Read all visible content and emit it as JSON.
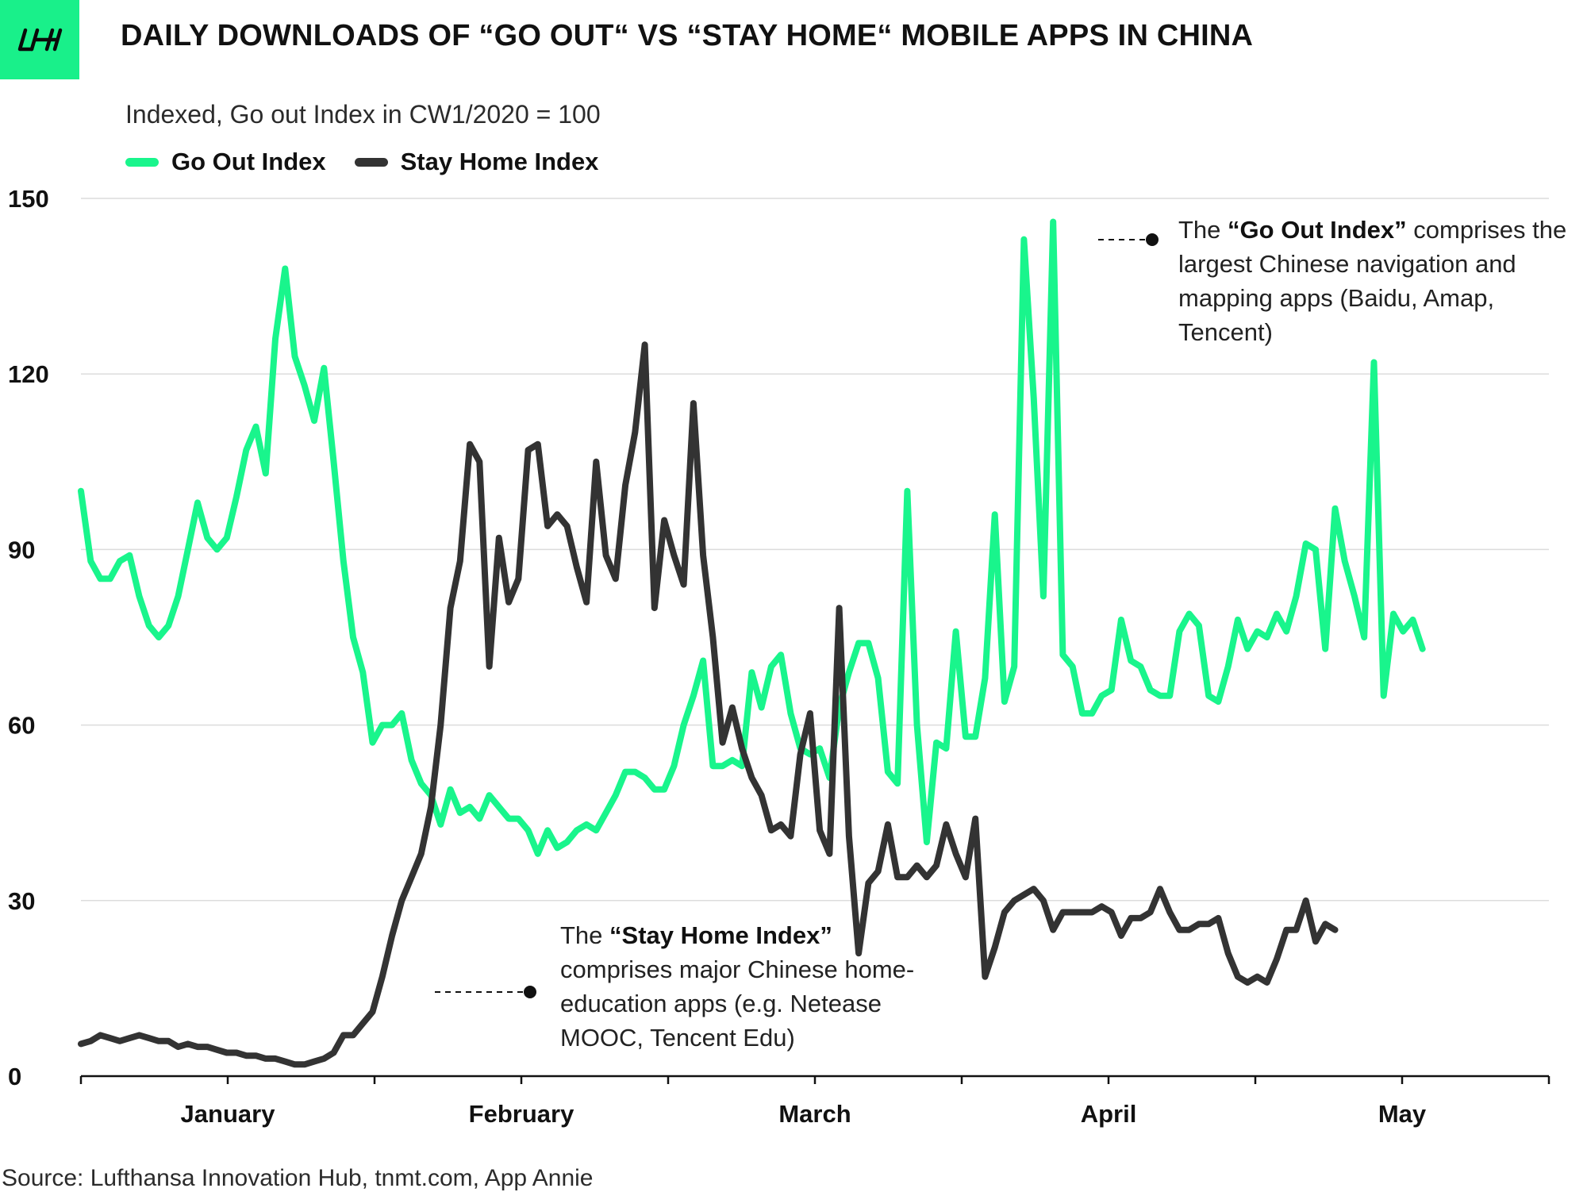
{
  "header": {
    "logo_text": "LH",
    "title": "DAILY DOWNLOADS OF “GO OUT“ VS “STAY HOME“ MOBILE APPS IN CHINA",
    "subtitle": "Indexed, Go out Index in CW1/2020 = 100"
  },
  "footer": {
    "source": "Source: Lufthansa Innovation Hub, tnmt.com, App Annie"
  },
  "annotations": {
    "go_out": {
      "pre": "The ",
      "bold": "“Go Out Index”",
      "rest": " comprises the largest Chinese navigation and mapping apps (Baidu, Amap, Tencent)"
    },
    "stay_home": {
      "pre": "The ",
      "bold": "“Stay Home Index”",
      "rest": " comprises major Chinese home-education apps (e.g. Netease MOOC, Tencent Edu)"
    }
  },
  "colors": {
    "go_out": "#19f58c",
    "stay_home": "#333333",
    "grid": "#dcdcdc",
    "axis": "#111111"
  },
  "chart_data": {
    "type": "line",
    "title": "DAILY DOWNLOADS OF “GO OUT“ VS “STAY HOME“ MOBILE APPS IN CHINA",
    "subtitle": "Indexed, Go out Index in CW1/2020 = 100",
    "ylim": [
      0,
      150
    ],
    "yticks": [
      "0",
      "30",
      "60",
      "90",
      "120",
      "150"
    ],
    "month_labels": [
      "January",
      "February",
      "March",
      "April",
      "May"
    ],
    "x_range": [
      "2020-01-01",
      "2020-05-31"
    ],
    "grid": true,
    "legend_position": "top-left",
    "series": [
      {
        "name": "Go Out Index",
        "color": "#19f58c",
        "points": [
          [
            "2020-01-01",
            100
          ],
          [
            "2020-01-02",
            88
          ],
          [
            "2020-01-03",
            85
          ],
          [
            "2020-01-04",
            85
          ],
          [
            "2020-01-05",
            88
          ],
          [
            "2020-01-06",
            89
          ],
          [
            "2020-01-07",
            82
          ],
          [
            "2020-01-08",
            77
          ],
          [
            "2020-01-09",
            75
          ],
          [
            "2020-01-10",
            77
          ],
          [
            "2020-01-11",
            82
          ],
          [
            "2020-01-12",
            90
          ],
          [
            "2020-01-13",
            98
          ],
          [
            "2020-01-14",
            92
          ],
          [
            "2020-01-15",
            90
          ],
          [
            "2020-01-16",
            92
          ],
          [
            "2020-01-17",
            99
          ],
          [
            "2020-01-18",
            107
          ],
          [
            "2020-01-19",
            111
          ],
          [
            "2020-01-20",
            103
          ],
          [
            "2020-01-21",
            126
          ],
          [
            "2020-01-22",
            138
          ],
          [
            "2020-01-23",
            123
          ],
          [
            "2020-01-24",
            118
          ],
          [
            "2020-01-25",
            112
          ],
          [
            "2020-01-26",
            121
          ],
          [
            "2020-01-27",
            105
          ],
          [
            "2020-01-28",
            88
          ],
          [
            "2020-01-29",
            75
          ],
          [
            "2020-01-30",
            69
          ],
          [
            "2020-01-31",
            57
          ],
          [
            "2020-02-01",
            60
          ],
          [
            "2020-02-02",
            60
          ],
          [
            "2020-02-03",
            62
          ],
          [
            "2020-02-04",
            54
          ],
          [
            "2020-02-05",
            50
          ],
          [
            "2020-02-06",
            48
          ],
          [
            "2020-02-07",
            43
          ],
          [
            "2020-02-08",
            49
          ],
          [
            "2020-02-09",
            45
          ],
          [
            "2020-02-10",
            46
          ],
          [
            "2020-02-11",
            44
          ],
          [
            "2020-02-12",
            48
          ],
          [
            "2020-02-13",
            46
          ],
          [
            "2020-02-14",
            44
          ],
          [
            "2020-02-15",
            44
          ],
          [
            "2020-02-16",
            42
          ],
          [
            "2020-02-17",
            38
          ],
          [
            "2020-02-18",
            42
          ],
          [
            "2020-02-19",
            39
          ],
          [
            "2020-02-20",
            40
          ],
          [
            "2020-02-21",
            42
          ],
          [
            "2020-02-22",
            43
          ],
          [
            "2020-02-23",
            42
          ],
          [
            "2020-02-24",
            45
          ],
          [
            "2020-02-25",
            48
          ],
          [
            "2020-02-26",
            52
          ],
          [
            "2020-02-27",
            52
          ],
          [
            "2020-02-28",
            51
          ],
          [
            "2020-02-29",
            49
          ],
          [
            "2020-03-01",
            49
          ],
          [
            "2020-03-02",
            53
          ],
          [
            "2020-03-03",
            60
          ],
          [
            "2020-03-04",
            65
          ],
          [
            "2020-03-05",
            71
          ],
          [
            "2020-03-06",
            53
          ],
          [
            "2020-03-07",
            53
          ],
          [
            "2020-03-08",
            54
          ],
          [
            "2020-03-09",
            53
          ],
          [
            "2020-03-10",
            69
          ],
          [
            "2020-03-11",
            63
          ],
          [
            "2020-03-12",
            70
          ],
          [
            "2020-03-13",
            72
          ],
          [
            "2020-03-14",
            62
          ],
          [
            "2020-03-15",
            56
          ],
          [
            "2020-03-16",
            55
          ],
          [
            "2020-03-17",
            56
          ],
          [
            "2020-03-18",
            51
          ],
          [
            "2020-03-19",
            63
          ],
          [
            "2020-03-20",
            69
          ],
          [
            "2020-03-21",
            74
          ],
          [
            "2020-03-22",
            74
          ],
          [
            "2020-03-23",
            68
          ],
          [
            "2020-03-24",
            52
          ],
          [
            "2020-03-25",
            50
          ],
          [
            "2020-03-26",
            100
          ],
          [
            "2020-03-27",
            60
          ],
          [
            "2020-03-28",
            40
          ],
          [
            "2020-03-29",
            57
          ],
          [
            "2020-03-30",
            56
          ],
          [
            "2020-03-31",
            76
          ],
          [
            "2020-04-01",
            58
          ],
          [
            "2020-04-02",
            58
          ],
          [
            "2020-04-03",
            68
          ],
          [
            "2020-04-04",
            96
          ],
          [
            "2020-04-05",
            64
          ],
          [
            "2020-04-06",
            70
          ],
          [
            "2020-04-07",
            143
          ],
          [
            "2020-04-08",
            116
          ],
          [
            "2020-04-09",
            82
          ],
          [
            "2020-04-10",
            146
          ],
          [
            "2020-04-11",
            72
          ],
          [
            "2020-04-12",
            70
          ],
          [
            "2020-04-13",
            62
          ],
          [
            "2020-04-14",
            62
          ],
          [
            "2020-04-15",
            65
          ],
          [
            "2020-04-16",
            66
          ],
          [
            "2020-04-17",
            78
          ],
          [
            "2020-04-18",
            71
          ],
          [
            "2020-04-19",
            70
          ],
          [
            "2020-04-20",
            66
          ],
          [
            "2020-04-21",
            65
          ],
          [
            "2020-04-22",
            65
          ],
          [
            "2020-04-23",
            76
          ],
          [
            "2020-04-24",
            79
          ],
          [
            "2020-04-25",
            77
          ],
          [
            "2020-04-26",
            65
          ],
          [
            "2020-04-27",
            64
          ],
          [
            "2020-04-28",
            70
          ],
          [
            "2020-04-29",
            78
          ],
          [
            "2020-04-30",
            73
          ],
          [
            "2020-05-01",
            76
          ],
          [
            "2020-05-02",
            75
          ],
          [
            "2020-05-03",
            79
          ],
          [
            "2020-05-04",
            76
          ],
          [
            "2020-05-05",
            82
          ],
          [
            "2020-05-06",
            91
          ],
          [
            "2020-05-07",
            90
          ],
          [
            "2020-05-08",
            73
          ],
          [
            "2020-05-09",
            97
          ],
          [
            "2020-05-10",
            88
          ],
          [
            "2020-05-11",
            82
          ],
          [
            "2020-05-12",
            75
          ],
          [
            "2020-05-13",
            122
          ],
          [
            "2020-05-14",
            65
          ],
          [
            "2020-05-15",
            79
          ],
          [
            "2020-05-16",
            76
          ],
          [
            "2020-05-17",
            78
          ],
          [
            "2020-05-18",
            73
          ]
        ]
      },
      {
        "name": "Stay Home Index",
        "color": "#333333",
        "points": [
          [
            "2020-01-01",
            5.5
          ],
          [
            "2020-01-02",
            6
          ],
          [
            "2020-01-03",
            7
          ],
          [
            "2020-01-04",
            6.5
          ],
          [
            "2020-01-05",
            6
          ],
          [
            "2020-01-06",
            6.5
          ],
          [
            "2020-01-07",
            7
          ],
          [
            "2020-01-08",
            6.5
          ],
          [
            "2020-01-09",
            6
          ],
          [
            "2020-01-10",
            6
          ],
          [
            "2020-01-11",
            5
          ],
          [
            "2020-01-12",
            5.5
          ],
          [
            "2020-01-13",
            5
          ],
          [
            "2020-01-14",
            5
          ],
          [
            "2020-01-15",
            4.5
          ],
          [
            "2020-01-16",
            4
          ],
          [
            "2020-01-17",
            4
          ],
          [
            "2020-01-18",
            3.5
          ],
          [
            "2020-01-19",
            3.5
          ],
          [
            "2020-01-20",
            3
          ],
          [
            "2020-01-21",
            3
          ],
          [
            "2020-01-22",
            2.5
          ],
          [
            "2020-01-23",
            2
          ],
          [
            "2020-01-24",
            2
          ],
          [
            "2020-01-25",
            2.5
          ],
          [
            "2020-01-26",
            3
          ],
          [
            "2020-01-27",
            4
          ],
          [
            "2020-01-28",
            7
          ],
          [
            "2020-01-29",
            7
          ],
          [
            "2020-01-30",
            9
          ],
          [
            "2020-01-31",
            11
          ],
          [
            "2020-02-01",
            17
          ],
          [
            "2020-02-02",
            24
          ],
          [
            "2020-02-03",
            30
          ],
          [
            "2020-02-04",
            34
          ],
          [
            "2020-02-05",
            38
          ],
          [
            "2020-02-06",
            46
          ],
          [
            "2020-02-07",
            60
          ],
          [
            "2020-02-08",
            80
          ],
          [
            "2020-02-09",
            88
          ],
          [
            "2020-02-10",
            108
          ],
          [
            "2020-02-11",
            105
          ],
          [
            "2020-02-12",
            70
          ],
          [
            "2020-02-13",
            92
          ],
          [
            "2020-02-14",
            81
          ],
          [
            "2020-02-15",
            85
          ],
          [
            "2020-02-16",
            107
          ],
          [
            "2020-02-17",
            108
          ],
          [
            "2020-02-18",
            94
          ],
          [
            "2020-02-19",
            96
          ],
          [
            "2020-02-20",
            94
          ],
          [
            "2020-02-21",
            87
          ],
          [
            "2020-02-22",
            81
          ],
          [
            "2020-02-23",
            105
          ],
          [
            "2020-02-24",
            89
          ],
          [
            "2020-02-25",
            85
          ],
          [
            "2020-02-26",
            101
          ],
          [
            "2020-02-27",
            110
          ],
          [
            "2020-02-28",
            125
          ],
          [
            "2020-02-29",
            80
          ],
          [
            "2020-03-01",
            95
          ],
          [
            "2020-03-02",
            89
          ],
          [
            "2020-03-03",
            84
          ],
          [
            "2020-03-04",
            115
          ],
          [
            "2020-03-05",
            89
          ],
          [
            "2020-03-06",
            75
          ],
          [
            "2020-03-07",
            57
          ],
          [
            "2020-03-08",
            63
          ],
          [
            "2020-03-09",
            56
          ],
          [
            "2020-03-10",
            51
          ],
          [
            "2020-03-11",
            48
          ],
          [
            "2020-03-12",
            42
          ],
          [
            "2020-03-13",
            43
          ],
          [
            "2020-03-14",
            41
          ],
          [
            "2020-03-15",
            55
          ],
          [
            "2020-03-16",
            62
          ],
          [
            "2020-03-17",
            42
          ],
          [
            "2020-03-18",
            38
          ],
          [
            "2020-03-19",
            80
          ],
          [
            "2020-03-20",
            41
          ],
          [
            "2020-03-21",
            21
          ],
          [
            "2020-03-22",
            33
          ],
          [
            "2020-03-23",
            35
          ],
          [
            "2020-03-24",
            43
          ],
          [
            "2020-03-25",
            34
          ],
          [
            "2020-03-26",
            34
          ],
          [
            "2020-03-27",
            36
          ],
          [
            "2020-03-28",
            34
          ],
          [
            "2020-03-29",
            36
          ],
          [
            "2020-03-30",
            43
          ],
          [
            "2020-03-31",
            38
          ],
          [
            "2020-04-01",
            34
          ],
          [
            "2020-04-02",
            44
          ],
          [
            "2020-04-03",
            17
          ],
          [
            "2020-04-04",
            22
          ],
          [
            "2020-04-05",
            28
          ],
          [
            "2020-04-06",
            30
          ],
          [
            "2020-04-07",
            31
          ],
          [
            "2020-04-08",
            32
          ],
          [
            "2020-04-09",
            30
          ],
          [
            "2020-04-10",
            25
          ],
          [
            "2020-04-11",
            28
          ],
          [
            "2020-04-12",
            28
          ],
          [
            "2020-04-13",
            28
          ],
          [
            "2020-04-14",
            28
          ],
          [
            "2020-04-15",
            29
          ],
          [
            "2020-04-16",
            28
          ],
          [
            "2020-04-17",
            24
          ],
          [
            "2020-04-18",
            27
          ],
          [
            "2020-04-19",
            27
          ],
          [
            "2020-04-20",
            28
          ],
          [
            "2020-04-21",
            32
          ],
          [
            "2020-04-22",
            28
          ],
          [
            "2020-04-23",
            25
          ],
          [
            "2020-04-24",
            25
          ],
          [
            "2020-04-25",
            26
          ],
          [
            "2020-04-26",
            26
          ],
          [
            "2020-04-27",
            27
          ],
          [
            "2020-04-28",
            21
          ],
          [
            "2020-04-29",
            17
          ],
          [
            "2020-04-30",
            16
          ],
          [
            "2020-05-01",
            17
          ],
          [
            "2020-05-02",
            16
          ],
          [
            "2020-05-03",
            20
          ],
          [
            "2020-05-04",
            25
          ],
          [
            "2020-05-05",
            25
          ],
          [
            "2020-05-06",
            30
          ],
          [
            "2020-05-07",
            23
          ],
          [
            "2020-05-08",
            26
          ],
          [
            "2020-05-09",
            25
          ]
        ]
      }
    ]
  }
}
